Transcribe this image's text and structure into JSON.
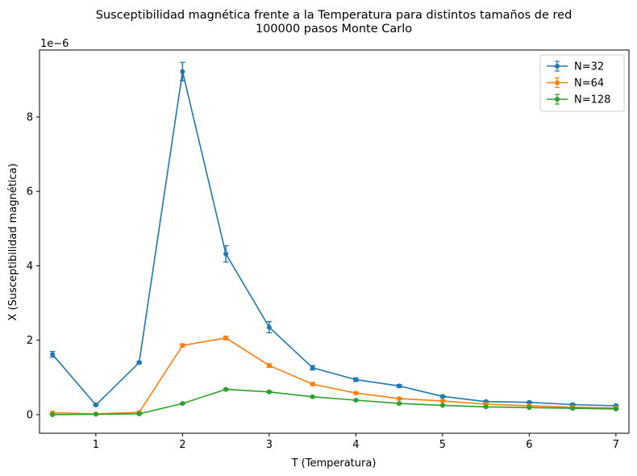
{
  "chart_data": {
    "type": "line",
    "title": "Susceptibilidad magnética frente a la Temperatura para distintos tamaños de red",
    "subtitle": "100000 pasos Monte Carlo",
    "xlabel": "T (Temperatura)",
    "ylabel": "X (Susceptibilidad magnética)",
    "y_offset_label": "1e−6",
    "xlim": [
      0.35,
      7.15
    ],
    "ylim": [
      -0.5,
      9.8
    ],
    "y_scale_factor": 1e-06,
    "grid": false,
    "legend_position": "top-right",
    "x": [
      0.5,
      1.0,
      1.5,
      2.0,
      2.5,
      3.0,
      3.5,
      4.0,
      4.5,
      5.0,
      5.5,
      6.0,
      6.5,
      7.0
    ],
    "xticks": [
      1,
      2,
      3,
      4,
      5,
      6,
      7
    ],
    "xtick_labels": [
      "1",
      "2",
      "3",
      "4",
      "5",
      "6",
      "7"
    ],
    "yticks": [
      0,
      2,
      4,
      6,
      8
    ],
    "ytick_labels": [
      "0",
      "2",
      "4",
      "6",
      "8"
    ],
    "series": [
      {
        "name": "N=32",
        "color": "#1f77b4",
        "values": [
          1.62,
          0.26,
          1.4,
          9.22,
          4.32,
          2.35,
          1.26,
          0.94,
          0.77,
          0.49,
          0.35,
          0.33,
          0.27,
          0.24
        ],
        "errors": [
          0.08,
          0.02,
          0.03,
          0.25,
          0.22,
          0.15,
          0.06,
          0.05,
          0.04,
          0.03,
          0.02,
          0.02,
          0.02,
          0.02
        ]
      },
      {
        "name": "N=64",
        "color": "#ff7f0e",
        "values": [
          0.05,
          0.02,
          0.06,
          1.86,
          2.06,
          1.32,
          0.82,
          0.58,
          0.43,
          0.37,
          0.28,
          0.24,
          0.2,
          0.18
        ],
        "errors": [
          0.01,
          0.01,
          0.01,
          0.04,
          0.05,
          0.05,
          0.04,
          0.02,
          0.02,
          0.01,
          0.01,
          0.01,
          0.01,
          0.01
        ]
      },
      {
        "name": "N=128",
        "color": "#2ca02c",
        "values": [
          0.0,
          0.01,
          0.02,
          0.3,
          0.68,
          0.61,
          0.48,
          0.39,
          0.3,
          0.25,
          0.21,
          0.19,
          0.17,
          0.15
        ],
        "errors": [
          0.005,
          0.005,
          0.005,
          0.01,
          0.02,
          0.02,
          0.01,
          0.01,
          0.01,
          0.01,
          0.01,
          0.01,
          0.01,
          0.01
        ]
      }
    ]
  }
}
